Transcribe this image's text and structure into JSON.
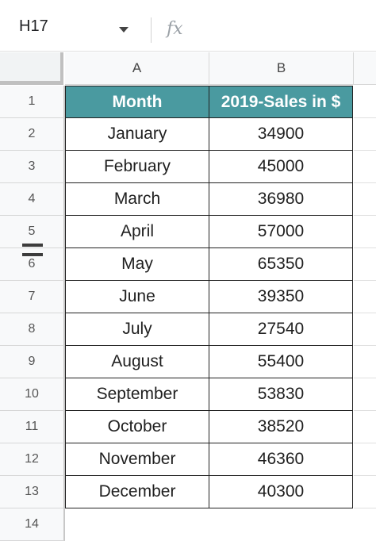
{
  "formula_bar": {
    "cell_ref": "H17",
    "fx_label": "fx"
  },
  "columns": [
    "A",
    "B"
  ],
  "rows": [
    "1",
    "2",
    "3",
    "4",
    "5",
    "6",
    "7",
    "8",
    "9",
    "10",
    "11",
    "12",
    "13",
    "14"
  ],
  "table": {
    "headers": [
      "Month",
      "2019-Sales in $"
    ],
    "months": [
      "January",
      "February",
      "March",
      "April",
      "May",
      "June",
      "July",
      "August",
      "September",
      "October",
      "November",
      "December"
    ],
    "sales": [
      "34900",
      "45000",
      "36980",
      "57000",
      "65350",
      "39350",
      "27540",
      "55400",
      "53830",
      "38520",
      "46360",
      "40300"
    ]
  },
  "colors": {
    "header_fill": "#4a9aa0",
    "header_text": "#ffffff"
  }
}
